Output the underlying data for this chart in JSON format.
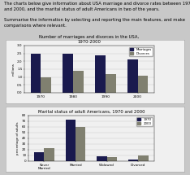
{
  "text_intro_line1": "The charts below give information about USA marriage and divorce rates between 1970",
  "text_intro_line2": "and 2000, and the marital status of adult Americans in two of the years.",
  "text_intro_line3": "",
  "text_intro_line4": "Summarise the information by selecting and reporting the main features, and make",
  "text_intro_line5": "comparisons where relevant.",
  "chart1_title": "Number of marriages and divorces in the USA,\n1970-2000",
  "chart1_years": [
    "1970",
    "1980",
    "1990",
    "2000"
  ],
  "chart1_marriages": [
    2.5,
    2.5,
    2.4,
    2.1
  ],
  "chart1_divorces": [
    1.0,
    1.4,
    1.2,
    1.1
  ],
  "chart1_ylabel": "millions",
  "chart1_ylim": [
    0,
    3
  ],
  "chart1_yticks": [
    0,
    0.5,
    1.0,
    1.5,
    2.0,
    2.5,
    3.0
  ],
  "chart1_legend": [
    "Marriages",
    "Divorces"
  ],
  "chart1_bar_colors": [
    "#1a1a4e",
    "#808070"
  ],
  "chart2_title": "Marital status of adult Americans, 1970 and 2000",
  "chart2_categories": [
    "Never\nMarried",
    "Married",
    "Widowed",
    "Divorced"
  ],
  "chart2_1970": [
    15,
    72,
    8,
    3
  ],
  "chart2_2000": [
    23,
    60,
    7,
    10
  ],
  "chart2_ylabel": "percentage of adults",
  "chart2_ylim": [
    0,
    80
  ],
  "chart2_yticks": [
    0,
    10,
    20,
    30,
    40,
    50,
    60,
    70,
    80
  ],
  "chart2_legend": [
    "1970",
    "2000"
  ],
  "chart2_bar_colors": [
    "#1a1a4e",
    "#808070"
  ],
  "fig_bg": "#c8c8c8",
  "panel_bg": "#f0f0f0",
  "panel_border": "#b0b0b0"
}
